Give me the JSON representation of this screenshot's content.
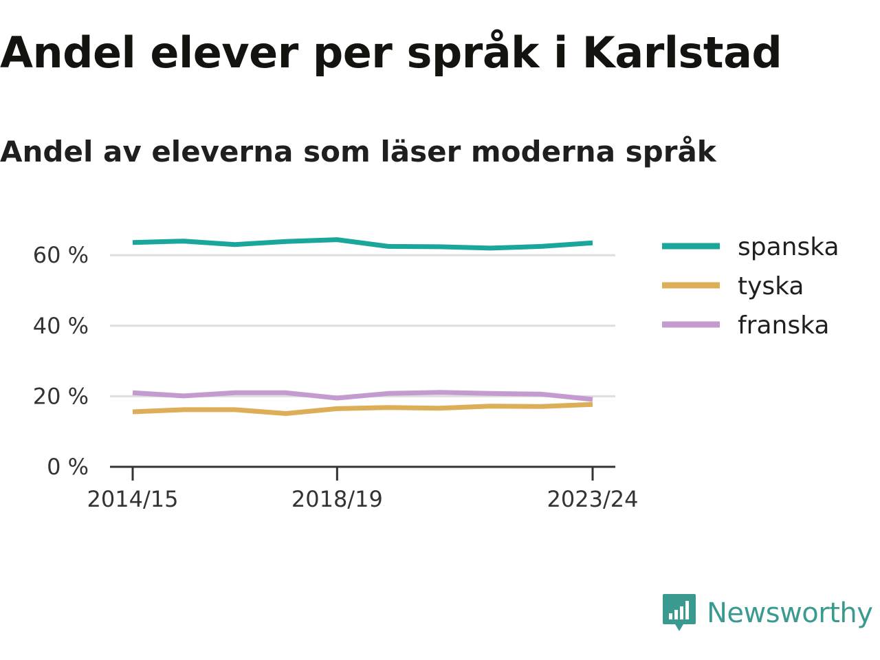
{
  "title": "Andel elever per språk i Karlstad",
  "subtitle": "Andel av eleverna som läser moderna språk",
  "brand": {
    "name": "Newsworthy",
    "icon": "newsworthy-logo-icon",
    "color": "#3b9a8f"
  },
  "chart_data": {
    "type": "line",
    "x": [
      "2014/15",
      "2015/16",
      "2016/17",
      "2017/18",
      "2018/19",
      "2019/20",
      "2020/21",
      "2021/22",
      "2022/23",
      "2023/24"
    ],
    "x_tick_labels": [
      "2014/15",
      "2018/19",
      "2023/24"
    ],
    "y_ticks": [
      0,
      20,
      40,
      60
    ],
    "y_tick_labels": [
      "0 %",
      "20 %",
      "40 %",
      "60 %"
    ],
    "ylim": [
      0,
      70
    ],
    "grid": true,
    "legend_position": "right",
    "series": [
      {
        "name": "spanska",
        "color": "#1aa69a",
        "values": [
          63.6,
          64.0,
          63.0,
          63.9,
          64.4,
          62.5,
          62.4,
          62.0,
          62.5,
          63.5
        ]
      },
      {
        "name": "tyska",
        "color": "#dcae58",
        "values": [
          15.6,
          16.2,
          16.2,
          15.1,
          16.5,
          16.8,
          16.6,
          17.2,
          17.1,
          17.7
        ]
      },
      {
        "name": "franska",
        "color": "#c49bcf",
        "values": [
          21.0,
          20.1,
          21.0,
          21.0,
          19.5,
          20.8,
          21.1,
          20.8,
          20.6,
          19.1
        ]
      }
    ]
  }
}
